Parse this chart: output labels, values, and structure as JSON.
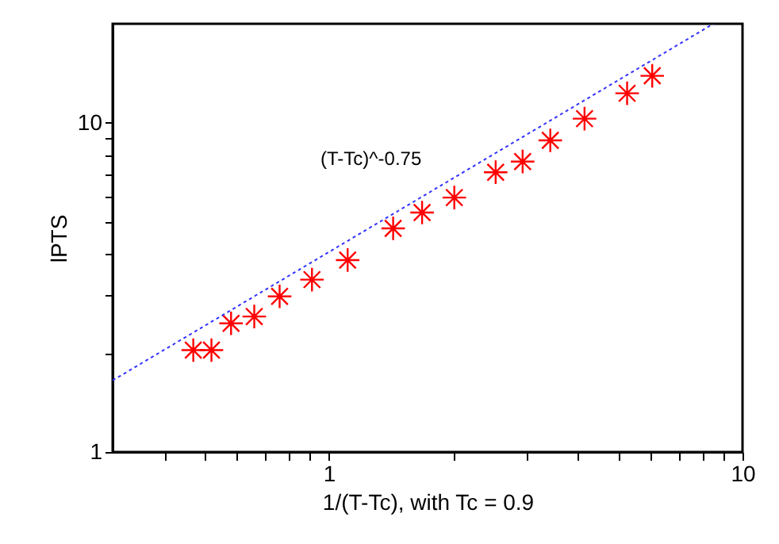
{
  "chart_data": {
    "type": "scatter",
    "xlabel": "1/(T-Tc), with Tc = 0.9",
    "ylabel": "lPTS",
    "log": "xy",
    "xlim": [
      0.3,
      10
    ],
    "ylim": [
      1,
      20
    ],
    "xticks": [
      {
        "value": 0.4,
        "label": null
      },
      {
        "value": 0.5,
        "label": null
      },
      {
        "value": 0.6,
        "label": null
      },
      {
        "value": 0.7,
        "label": null
      },
      {
        "value": 0.8,
        "label": null
      },
      {
        "value": 0.9,
        "label": null
      },
      1,
      {
        "value": 2,
        "label": null
      },
      {
        "value": 3,
        "label": null
      },
      {
        "value": 4,
        "label": null
      },
      {
        "value": 5,
        "label": null
      },
      {
        "value": 6,
        "label": null
      },
      {
        "value": 7,
        "label": null
      },
      {
        "value": 8,
        "label": null
      },
      {
        "value": 9,
        "label": null
      },
      10
    ],
    "yticks": [
      1,
      {
        "value": 2,
        "label": null
      },
      {
        "value": 3,
        "label": null
      },
      {
        "value": 4,
        "label": null
      },
      {
        "value": 5,
        "label": null
      },
      {
        "value": 6,
        "label": null
      },
      {
        "value": 7,
        "label": null
      },
      {
        "value": 8,
        "label": null
      },
      {
        "value": 9,
        "label": null
      },
      10
    ],
    "grid": false,
    "series": [
      {
        "color": "#ff0000",
        "marker": "cross",
        "x": [
          0.47,
          0.52,
          0.58,
          0.66,
          0.76,
          0.91,
          1.11,
          1.43,
          1.68,
          2.01,
          2.53,
          2.94,
          3.43,
          4.15,
          5.26,
          6.05
        ],
        "values": [
          2.04,
          2.04,
          2.46,
          2.58,
          2.97,
          3.34,
          3.83,
          4.78,
          5.34,
          5.93,
          7.08,
          7.63,
          8.85,
          10.3,
          12.3,
          13.9
        ]
      },
      {
        "type": "line",
        "color": "#3333ff",
        "marker": "none",
        "line_style": "dotted",
        "x": [
          0.3,
          8.5
        ],
        "values": [
          1.65,
          20
        ]
      }
    ],
    "annotations": [
      "(T-Tc)^-0.75"
    ]
  }
}
